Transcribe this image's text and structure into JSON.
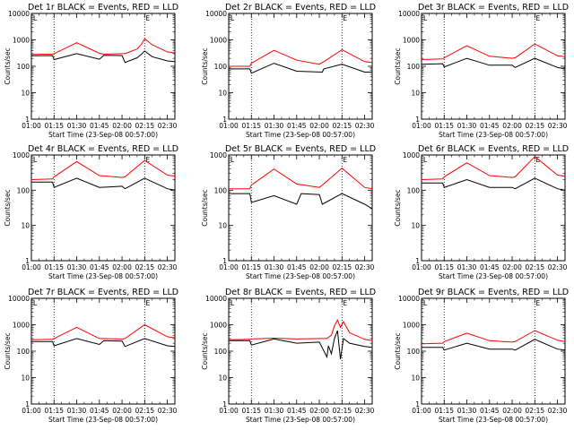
{
  "chart_data": [
    {
      "type": "line",
      "title": "Det 1r BLACK = Events, RED = LLD",
      "xlabel": "Start Time (23-Sep-08 00:57:00)",
      "ylabel": "Counts/sec",
      "yscale": "log",
      "ylim": [
        1,
        10000
      ],
      "xlim": [
        "01:00",
        "02:35"
      ],
      "xticks": [
        "01:00",
        "01:15",
        "01:30",
        "01:45",
        "02:00",
        "02:15",
        "02:30"
      ],
      "yticks": [
        "1",
        "10",
        "100",
        "1000",
        "10000"
      ],
      "vlines": [
        "01:15",
        "02:15"
      ],
      "markers": [
        "L",
        "E"
      ],
      "series": [
        {
          "name": "Events",
          "color": "#000000",
          "x": [
            "01:00",
            "01:14",
            "01:15",
            "01:30",
            "01:45",
            "01:48",
            "02:00",
            "02:02",
            "02:10",
            "02:13",
            "02:15",
            "02:20",
            "02:30",
            "02:35"
          ],
          "values": [
            250,
            255,
            180,
            300,
            185,
            260,
            255,
            140,
            210,
            290,
            380,
            230,
            160,
            150
          ]
        },
        {
          "name": "LLD",
          "color": "#ff0000",
          "x": [
            "01:00",
            "01:14",
            "01:15",
            "01:30",
            "01:45",
            "01:48",
            "02:00",
            "02:02",
            "02:10",
            "02:13",
            "02:15",
            "02:20",
            "02:30",
            "02:35"
          ],
          "values": [
            280,
            290,
            300,
            780,
            310,
            290,
            300,
            300,
            450,
            700,
            1100,
            650,
            350,
            320
          ]
        }
      ]
    },
    {
      "type": "line",
      "title": "Det 2r BLACK = Events, RED = LLD",
      "xlabel": "Start Time (23-Sep-08 00:57:00)",
      "ylabel": "Counts/sec",
      "yscale": "log",
      "ylim": [
        1,
        10000
      ],
      "xlim": [
        "01:00",
        "02:35"
      ],
      "xticks": [
        "01:00",
        "01:15",
        "01:30",
        "01:45",
        "02:00",
        "02:15",
        "02:30"
      ],
      "yticks": [
        "1",
        "10",
        "100",
        "1000",
        "10000"
      ],
      "vlines": [
        "01:15",
        "02:15"
      ],
      "markers": [
        "L",
        "E"
      ],
      "series": [
        {
          "name": "Events",
          "color": "#000000",
          "x": [
            "01:00",
            "01:14",
            "01:15",
            "01:30",
            "01:45",
            "02:02",
            "02:03",
            "02:15",
            "02:30",
            "02:35"
          ],
          "values": [
            80,
            80,
            55,
            130,
            65,
            60,
            80,
            120,
            60,
            60
          ]
        },
        {
          "name": "LLD",
          "color": "#ff0000",
          "x": [
            "01:00",
            "01:14",
            "01:15",
            "01:30",
            "01:45",
            "02:00",
            "02:03",
            "02:15",
            "02:30",
            "02:35"
          ],
          "values": [
            100,
            100,
            130,
            400,
            170,
            120,
            150,
            420,
            150,
            140
          ]
        }
      ]
    },
    {
      "type": "line",
      "title": "Det 3r BLACK = Events, RED = LLD",
      "xlabel": "Start Time (23-Sep-08 00:57:00)",
      "ylabel": "Counts/sec",
      "yscale": "log",
      "ylim": [
        1,
        10000
      ],
      "xlim": [
        "01:00",
        "02:35"
      ],
      "xticks": [
        "01:00",
        "01:15",
        "01:30",
        "01:45",
        "02:00",
        "02:15",
        "02:30"
      ],
      "yticks": [
        "1",
        "10",
        "100",
        "1000",
        "10000"
      ],
      "vlines": [
        "01:15",
        "02:15"
      ],
      "markers": [
        "L",
        "E"
      ],
      "series": [
        {
          "name": "Events",
          "color": "#000000",
          "x": [
            "01:00",
            "01:14",
            "01:15",
            "01:30",
            "01:45",
            "02:00",
            "02:02",
            "02:15",
            "02:30",
            "02:35"
          ],
          "values": [
            120,
            125,
            95,
            200,
            110,
            110,
            90,
            200,
            90,
            80
          ]
        },
        {
          "name": "LLD",
          "color": "#ff0000",
          "x": [
            "01:00",
            "01:14",
            "01:15",
            "01:30",
            "01:45",
            "02:00",
            "02:02",
            "02:15",
            "02:30",
            "02:35"
          ],
          "values": [
            180,
            190,
            210,
            600,
            240,
            200,
            210,
            700,
            250,
            230
          ]
        }
      ]
    },
    {
      "type": "line",
      "title": "Det 4r BLACK = Events, RED = LLD",
      "xlabel": "Start Time (23-Sep-08 00:57:00)",
      "ylabel": "Counts/sec",
      "yscale": "log",
      "ylim": [
        1,
        1000
      ],
      "xlim": [
        "01:00",
        "02:35"
      ],
      "xticks": [
        "01:00",
        "01:15",
        "01:30",
        "01:45",
        "02:00",
        "02:15",
        "02:30"
      ],
      "yticks": [
        "1",
        "10",
        "100",
        "1000"
      ],
      "vlines": [
        "01:15",
        "02:15"
      ],
      "markers": [
        "L",
        "E"
      ],
      "series": [
        {
          "name": "Events",
          "color": "#000000",
          "x": [
            "01:00",
            "01:14",
            "01:15",
            "01:30",
            "01:45",
            "02:00",
            "02:02",
            "02:15",
            "02:30",
            "02:35"
          ],
          "values": [
            170,
            170,
            120,
            220,
            120,
            130,
            110,
            220,
            110,
            100
          ]
        },
        {
          "name": "LLD",
          "color": "#ff0000",
          "x": [
            "01:00",
            "01:14",
            "01:15",
            "01:30",
            "01:45",
            "02:00",
            "02:02",
            "02:15",
            "02:30",
            "02:35"
          ],
          "values": [
            200,
            210,
            240,
            650,
            260,
            230,
            240,
            700,
            270,
            250
          ]
        }
      ]
    },
    {
      "type": "line",
      "title": "Det 5r BLACK = Events, RED = LLD",
      "xlabel": "Start Time (23-Sep-08 00:57:00)",
      "ylabel": "Counts/sec",
      "yscale": "log",
      "ylim": [
        1,
        1000
      ],
      "xlim": [
        "01:00",
        "02:35"
      ],
      "xticks": [
        "01:00",
        "01:15",
        "01:30",
        "01:45",
        "02:00",
        "02:15",
        "02:30"
      ],
      "yticks": [
        "1",
        "10",
        "100",
        "1000"
      ],
      "vlines": [
        "01:15",
        "02:15"
      ],
      "markers": [
        "L",
        "E"
      ],
      "series": [
        {
          "name": "Events",
          "color": "#000000",
          "x": [
            "01:00",
            "01:14",
            "01:15",
            "01:30",
            "01:45",
            "01:48",
            "02:00",
            "02:02",
            "02:15",
            "02:30",
            "02:35"
          ],
          "values": [
            80,
            80,
            45,
            70,
            40,
            80,
            75,
            40,
            80,
            40,
            30
          ]
        },
        {
          "name": "LLD",
          "color": "#ff0000",
          "x": [
            "01:00",
            "01:14",
            "01:15",
            "01:30",
            "01:45",
            "02:00",
            "02:02",
            "02:15",
            "02:30",
            "02:35"
          ],
          "values": [
            110,
            110,
            140,
            400,
            150,
            120,
            140,
            420,
            120,
            110
          ]
        }
      ]
    },
    {
      "type": "line",
      "title": "Det 6r BLACK = Events, RED = LLD",
      "xlabel": "Start Time (23-Sep-08 00:57:00)",
      "ylabel": "Counts/sec",
      "yscale": "log",
      "ylim": [
        1,
        1000
      ],
      "xlim": [
        "01:00",
        "02:35"
      ],
      "xticks": [
        "01:00",
        "01:15",
        "01:30",
        "01:45",
        "02:00",
        "02:15",
        "02:30"
      ],
      "yticks": [
        "1",
        "10",
        "100",
        "1000"
      ],
      "vlines": [
        "01:15",
        "02:15"
      ],
      "markers": [
        "L",
        "E"
      ],
      "series": [
        {
          "name": "Events",
          "color": "#000000",
          "x": [
            "01:00",
            "01:14",
            "01:15",
            "01:30",
            "01:45",
            "02:00",
            "02:02",
            "02:15",
            "02:30",
            "02:35"
          ],
          "values": [
            160,
            160,
            120,
            200,
            120,
            120,
            110,
            220,
            110,
            100
          ]
        },
        {
          "name": "LLD",
          "color": "#ff0000",
          "x": [
            "01:00",
            "01:14",
            "01:15",
            "01:30",
            "01:45",
            "02:00",
            "02:02",
            "02:15",
            "02:30",
            "02:35"
          ],
          "values": [
            200,
            210,
            240,
            600,
            260,
            230,
            240,
            900,
            270,
            250
          ]
        }
      ]
    },
    {
      "type": "line",
      "title": "Det 7r BLACK = Events, RED = LLD",
      "xlabel": "Start Time (23-Sep-08 00:57:00)",
      "ylabel": "Counts/sec",
      "yscale": "log",
      "ylim": [
        1,
        10000
      ],
      "xlim": [
        "01:00",
        "02:35"
      ],
      "xticks": [
        "01:00",
        "01:15",
        "01:30",
        "01:45",
        "02:00",
        "02:15",
        "02:30"
      ],
      "yticks": [
        "1",
        "10",
        "100",
        "1000",
        "10000"
      ],
      "vlines": [
        "01:15",
        "02:15"
      ],
      "markers": [
        "L",
        "E"
      ],
      "series": [
        {
          "name": "Events",
          "color": "#000000",
          "x": [
            "01:00",
            "01:14",
            "01:15",
            "01:30",
            "01:45",
            "01:48",
            "02:00",
            "02:02",
            "02:15",
            "02:30",
            "02:35"
          ],
          "values": [
            230,
            230,
            160,
            300,
            180,
            250,
            240,
            150,
            300,
            160,
            150
          ]
        },
        {
          "name": "LLD",
          "color": "#ff0000",
          "x": [
            "01:00",
            "01:14",
            "01:15",
            "01:30",
            "01:45",
            "02:00",
            "02:02",
            "02:15",
            "02:30",
            "02:35"
          ],
          "values": [
            270,
            280,
            300,
            800,
            300,
            290,
            300,
            1000,
            350,
            320
          ]
        }
      ]
    },
    {
      "type": "line",
      "title": "Det 8r BLACK = Events, RED = LLD",
      "xlabel": "Start Time (23-Sep-08 00:57:00)",
      "ylabel": "Counts/sec",
      "yscale": "log",
      "ylim": [
        1,
        10000
      ],
      "xlim": [
        "01:00",
        "02:35"
      ],
      "xticks": [
        "01:00",
        "01:15",
        "01:30",
        "01:45",
        "02:00",
        "02:15",
        "02:30"
      ],
      "yticks": [
        "1",
        "10",
        "100",
        "1000",
        "10000"
      ],
      "vlines": [
        "01:15",
        "02:15"
      ],
      "markers": [
        "L",
        "E"
      ],
      "series": [
        {
          "name": "Events",
          "color": "#000000",
          "x": [
            "01:00",
            "01:14",
            "01:15",
            "01:30",
            "01:45",
            "02:00",
            "02:05",
            "02:06",
            "02:08",
            "02:10",
            "02:12",
            "02:14",
            "02:16",
            "02:20",
            "02:30",
            "02:35"
          ],
          "values": [
            250,
            250,
            170,
            290,
            200,
            220,
            60,
            160,
            80,
            300,
            600,
            50,
            300,
            200,
            150,
            140
          ]
        },
        {
          "name": "LLD",
          "color": "#ff0000",
          "x": [
            "01:00",
            "01:14",
            "01:15",
            "01:30",
            "01:45",
            "02:00",
            "02:05",
            "02:08",
            "02:10",
            "02:12",
            "02:14",
            "02:16",
            "02:20",
            "02:30",
            "02:35"
          ],
          "values": [
            270,
            280,
            290,
            310,
            290,
            300,
            300,
            400,
            900,
            1500,
            800,
            1300,
            500,
            280,
            250
          ]
        }
      ]
    },
    {
      "type": "line",
      "title": "Det 9r BLACK = Events, RED = LLD",
      "xlabel": "Start Time (23-Sep-08 00:57:00)",
      "ylabel": "Counts/sec",
      "yscale": "log",
      "ylim": [
        1,
        10000
      ],
      "xlim": [
        "01:00",
        "02:35"
      ],
      "xticks": [
        "01:00",
        "01:15",
        "01:30",
        "01:45",
        "02:00",
        "02:15",
        "02:30"
      ],
      "yticks": [
        "1",
        "10",
        "100",
        "1000",
        "10000"
      ],
      "vlines": [
        "01:15",
        "02:15"
      ],
      "markers": [
        "L",
        "E"
      ],
      "series": [
        {
          "name": "Events",
          "color": "#000000",
          "x": [
            "01:00",
            "01:14",
            "01:15",
            "01:30",
            "01:45",
            "02:00",
            "02:02",
            "02:15",
            "02:30",
            "02:35"
          ],
          "values": [
            140,
            140,
            110,
            200,
            120,
            120,
            110,
            280,
            120,
            110
          ]
        },
        {
          "name": "LLD",
          "color": "#ff0000",
          "x": [
            "01:00",
            "01:14",
            "01:15",
            "01:30",
            "01:45",
            "02:00",
            "02:02",
            "02:15",
            "02:30",
            "02:35"
          ],
          "values": [
            190,
            200,
            230,
            480,
            250,
            220,
            230,
            600,
            260,
            230
          ]
        }
      ]
    }
  ]
}
